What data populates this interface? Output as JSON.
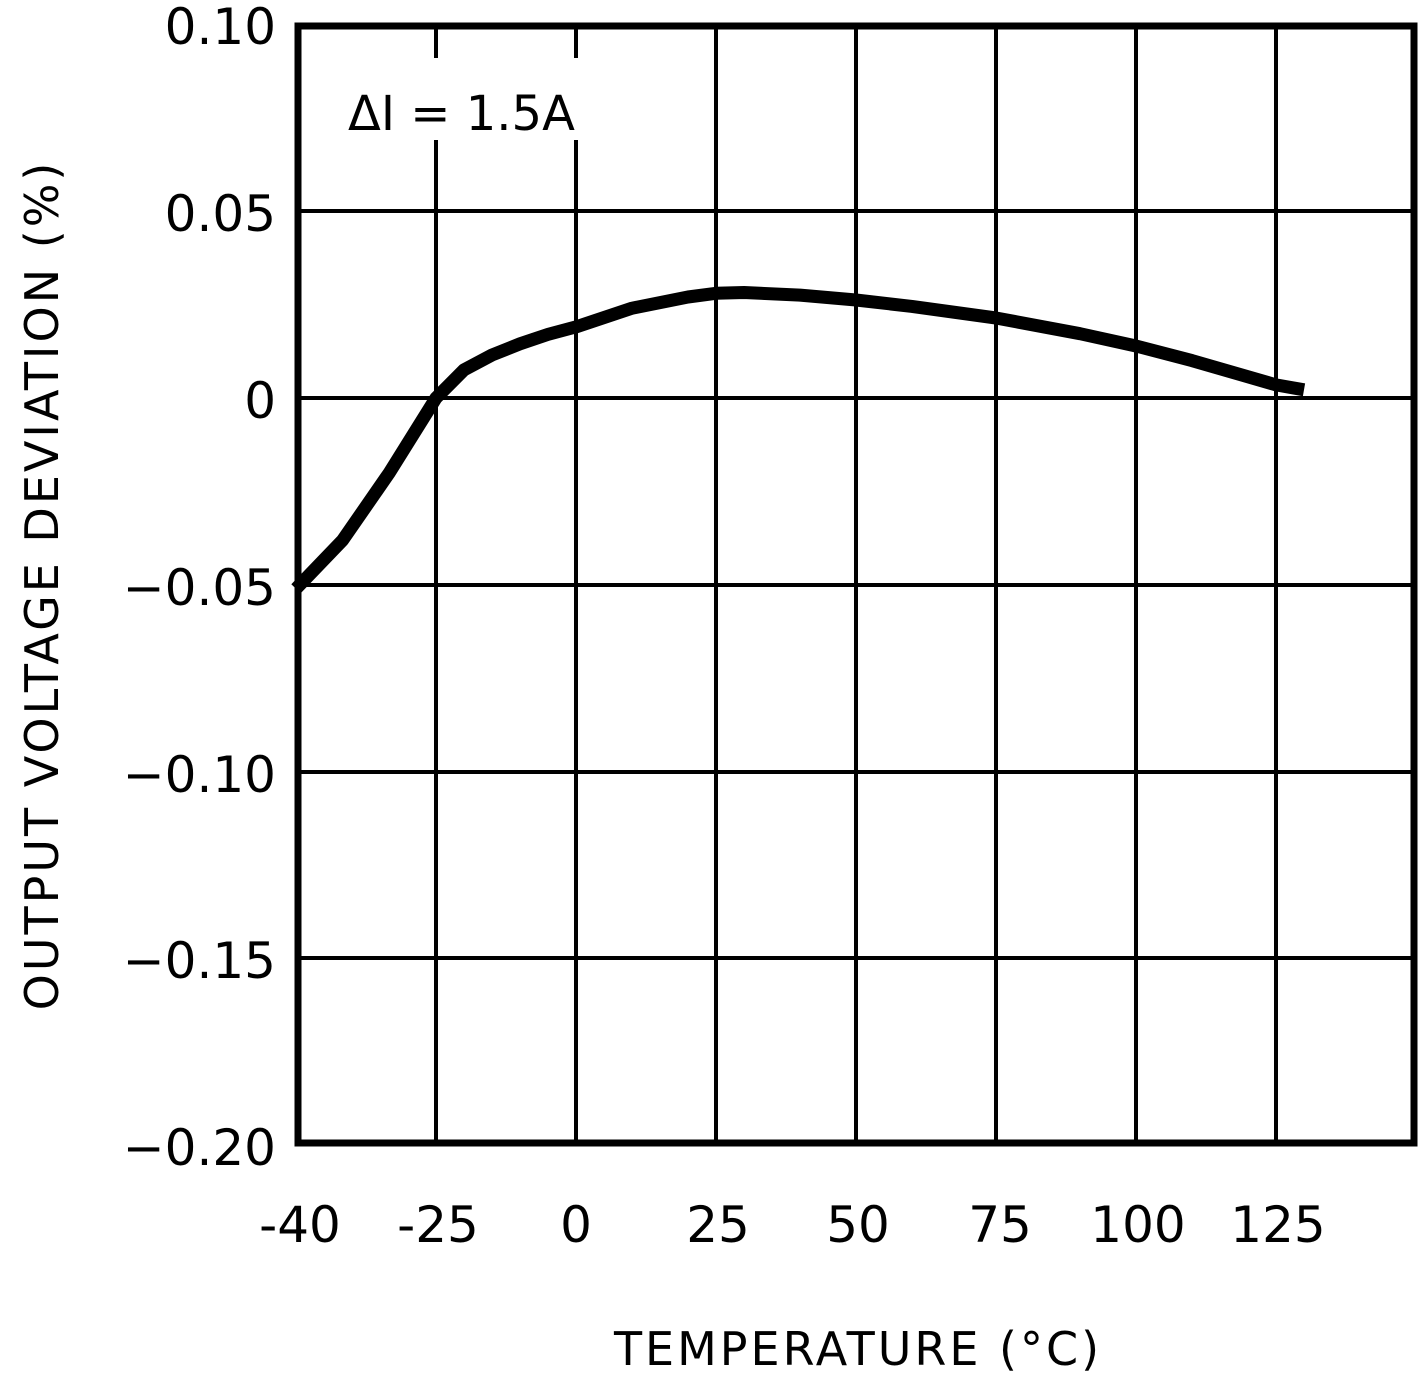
{
  "chart_data": {
    "type": "line",
    "title": "",
    "xlabel": "TEMPERATURE (°C)",
    "ylabel": "OUTPUT VOLTAGE DEVIATION (%)",
    "annotation": "ΔI = 1.5A",
    "x_ticks": [
      "-40",
      "-25",
      "0",
      "25",
      "50",
      "75",
      "100",
      "125"
    ],
    "y_ticks": [
      "0.10",
      "0.05",
      "0",
      "-0.05",
      "-0.10",
      "-0.15",
      "-0.20"
    ],
    "xlim": [
      -40,
      150
    ],
    "ylim": [
      -0.2,
      0.1
    ],
    "grid": true,
    "legend": null,
    "series": [
      {
        "name": "ΔI = 1.5A",
        "x": [
          -40,
          -35,
          -30,
          -25,
          -20,
          -15,
          -10,
          -5,
          0,
          10,
          20,
          25,
          30,
          40,
          50,
          60,
          75,
          90,
          100,
          110,
          125,
          130
        ],
        "y": [
          -0.051,
          -0.038,
          -0.02,
          0.0,
          0.0075,
          0.0115,
          0.0145,
          0.017,
          0.019,
          0.024,
          0.027,
          0.028,
          0.0282,
          0.0275,
          0.0262,
          0.0245,
          0.0214,
          0.0172,
          0.0139,
          0.01,
          0.0035,
          0.0022
        ]
      }
    ],
    "line_color": "#000000"
  },
  "labels": {
    "x_axis_title": "TEMPERATURE (°C)",
    "y_axis_title": "OUTPUT VOLTAGE DEVIATION (%)",
    "annotation": "ΔI = 1.5A",
    "x_ticks": [
      "-40",
      "-25",
      "0",
      "25",
      "50",
      "75",
      "100",
      "125"
    ],
    "y_ticks": [
      "0.10",
      "0.05",
      "0",
      "−0.05",
      "−0.10",
      "−0.15",
      "−0.20"
    ]
  }
}
